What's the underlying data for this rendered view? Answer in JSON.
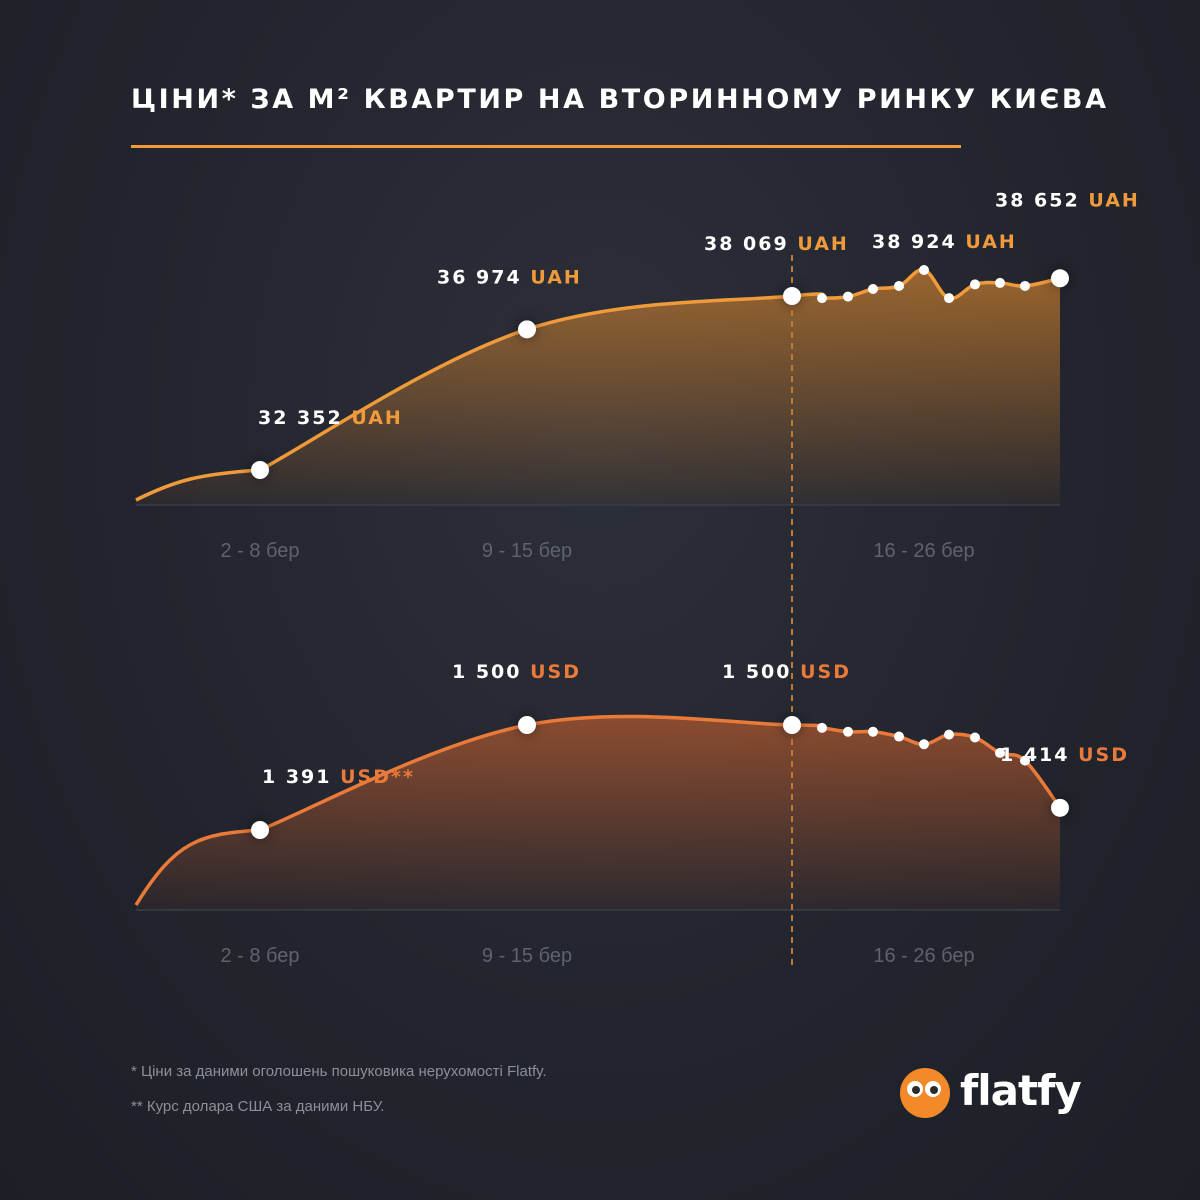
{
  "title": "ЦІНИ* ЗА М² КВАРТИР НА ВТОРИННОМУ РИНКУ КИЄВА",
  "colors": {
    "background": "#23252e",
    "uah_accent": "#ef9b3b",
    "usd_accent": "#ea7a3a",
    "label_white": "#ffffff",
    "axis_label": "#5f626c"
  },
  "chart_data": [
    {
      "type": "area",
      "currency": "UAH",
      "categories": [
        "2 - 8 бер",
        "9 - 15 бер",
        "16 - 26 бер"
      ],
      "points": [
        {
          "x": "2 - 8 бер",
          "y": 32352,
          "label": "32 352",
          "unit": "UAH"
        },
        {
          "x": "9 - 15 бер",
          "y": 36974,
          "label": "36 974",
          "unit": "UAH"
        },
        {
          "x": "16 бер",
          "y": 38069,
          "label": "38 069",
          "unit": "UAH"
        },
        {
          "x": "17 бер",
          "y": 38000
        },
        {
          "x": "18 бер",
          "y": 38050
        },
        {
          "x": "19 бер",
          "y": 38300
        },
        {
          "x": "20 бер",
          "y": 38400
        },
        {
          "x": "21 бер",
          "y": 38924,
          "label": "38 924",
          "unit": "UAH"
        },
        {
          "x": "22 бер",
          "y": 38000
        },
        {
          "x": "23 бер",
          "y": 38450
        },
        {
          "x": "24 бер",
          "y": 38500
        },
        {
          "x": "25 бер",
          "y": 38400
        },
        {
          "x": "26 бер",
          "y": 38652,
          "label": "38 652",
          "unit": "UAH"
        }
      ]
    },
    {
      "type": "area",
      "currency": "USD",
      "categories": [
        "2 - 8 бер",
        "9 - 15 бер",
        "16 - 26 бер"
      ],
      "points": [
        {
          "x": "2 - 8 бер",
          "y": 1391,
          "label": "1 391",
          "unit": "USD**"
        },
        {
          "x": "9 - 15 бер",
          "y": 1500,
          "label": "1 500",
          "unit": "USD"
        },
        {
          "x": "16 бер",
          "y": 1500,
          "label": "1 500",
          "unit": "USD"
        },
        {
          "x": "17 бер",
          "y": 1497
        },
        {
          "x": "18 бер",
          "y": 1493
        },
        {
          "x": "19 бер",
          "y": 1493
        },
        {
          "x": "20 бер",
          "y": 1488
        },
        {
          "x": "21 бер",
          "y": 1480
        },
        {
          "x": "22 бер",
          "y": 1490
        },
        {
          "x": "23 бер",
          "y": 1487
        },
        {
          "x": "24 бер",
          "y": 1471
        },
        {
          "x": "25 бер",
          "y": 1463
        },
        {
          "x": "26 бер",
          "y": 1414,
          "label": "1 414",
          "unit": "USD"
        }
      ]
    }
  ],
  "footnotes": [
    "* Ціни за даними оголошень пошуковика нерухомості Flatfy.",
    "** Курс долара США за даними НБУ."
  ],
  "logo": {
    "text": "flatfy"
  }
}
